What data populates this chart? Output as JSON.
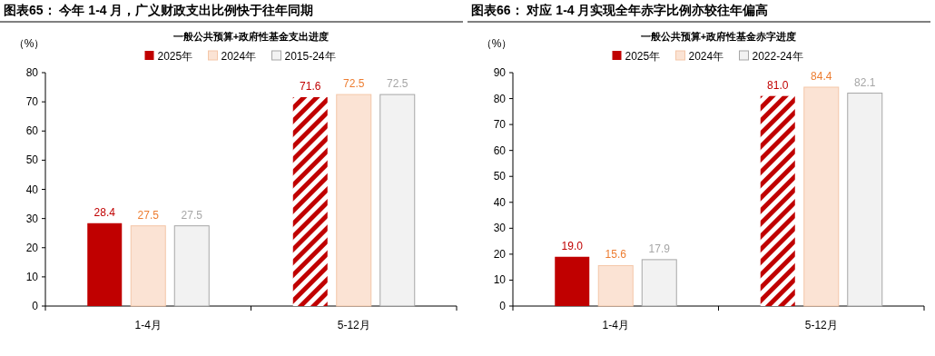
{
  "chart_data": [
    {
      "type": "bar",
      "title": "图表65：  今年 1-4 月，广义财政支出比例快于往年同期",
      "subtitle": "一般公共预算+政府性基金支出进度",
      "ylabel": "（%）",
      "categories": [
        "1-4月",
        "5-12月"
      ],
      "ylim": [
        0,
        80
      ],
      "yticks": [
        0,
        10,
        20,
        30,
        40,
        50,
        60,
        70,
        80
      ],
      "legend": "top",
      "data_labels": true,
      "grid": false,
      "series": [
        {
          "name": "2025年",
          "color": "#c00000",
          "values": [
            28.4,
            71.6
          ]
        },
        {
          "name": "2024年",
          "color": "#fbe3d4",
          "values": [
            27.5,
            72.5
          ]
        },
        {
          "name": "2015-24年",
          "color": "#f2f2f2",
          "values": [
            27.5,
            72.5
          ]
        }
      ]
    },
    {
      "type": "bar",
      "title": "图表66：  对应 1-4 月实现全年赤字比例亦较往年偏高",
      "subtitle": "一般公共预算+政府性基金赤字进度",
      "ylabel": "（%）",
      "categories": [
        "1-4月",
        "5-12月"
      ],
      "ylim": [
        0,
        90
      ],
      "yticks": [
        0,
        10,
        20,
        30,
        40,
        50,
        60,
        70,
        80,
        90
      ],
      "legend": "top",
      "grid": false,
      "series": [
        {
          "name": "2025年",
          "color": "#c00000",
          "values": [
            19.0,
            81.0
          ],
          "value_labels": [
            "19.0",
            "81.0"
          ]
        },
        {
          "name": "2024年",
          "color": "#fbe3d4",
          "values": [
            15.6,
            84.4
          ],
          "value_labels": [
            "15.6",
            "84.4"
          ]
        },
        {
          "name": "2022-24年",
          "color": "#f2f2f2",
          "values": [
            17.9,
            82.1
          ],
          "value_labels": [
            "17.9",
            "82.1"
          ]
        }
      ]
    }
  ]
}
